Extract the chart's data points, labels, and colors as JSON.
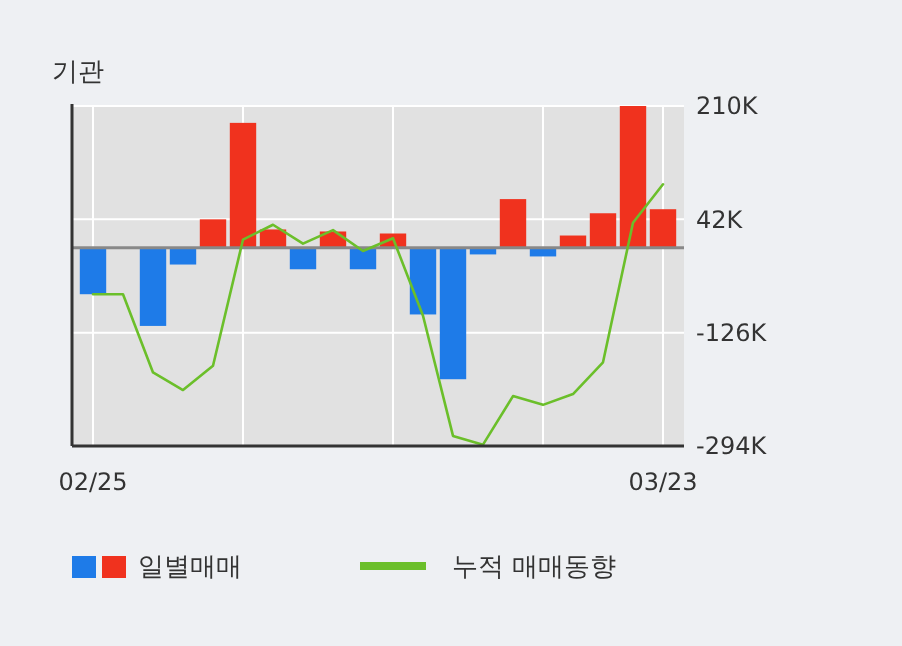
{
  "chart_data": {
    "type": "bar",
    "title": "기관",
    "categories": [
      "02/25",
      null,
      null,
      null,
      null,
      null,
      null,
      null,
      null,
      null,
      null,
      null,
      null,
      null,
      null,
      null,
      null,
      null,
      null,
      "03/23"
    ],
    "series": [
      {
        "name": "일별매매",
        "colors": [
          "#1e7be8",
          "#1e7be8",
          "#1e7be8",
          "#1e7be8",
          "#f0321e",
          "#f0321e",
          "#f0321e",
          "#1e7be8",
          "#f0321e",
          "#1e7be8",
          "#f0321e",
          "#1e7be8",
          "#1e7be8",
          "#1e7be8",
          "#f0321e",
          "#1e7be8",
          "#f0321e",
          "#f0321e",
          "#f0321e",
          "#f0321e"
        ],
        "values": [
          -69,
          0,
          -116,
          -25,
          42,
          185,
          27,
          -32,
          24,
          -32,
          21,
          -99,
          -195,
          -10,
          72,
          -13,
          18,
          51,
          210,
          57
        ]
      },
      {
        "type": "line",
        "name": "누적 매매동향",
        "color": "#6bbf2a",
        "values": [
          -69,
          -69,
          -185,
          -211,
          -175,
          12,
          34,
          6,
          26,
          -5,
          14,
          -101,
          -279,
          -292,
          -220,
          -233,
          -217,
          -170,
          37,
          94
        ]
      }
    ],
    "ylim": [
      -294,
      210
    ],
    "yticks": [
      {
        "value": 210,
        "label": "210K"
      },
      {
        "value": 42,
        "label": "42K"
      },
      {
        "value": -126,
        "label": "-126K"
      },
      {
        "value": -294,
        "label": "-294K"
      }
    ],
    "grid": true,
    "legend": "bottom left"
  }
}
